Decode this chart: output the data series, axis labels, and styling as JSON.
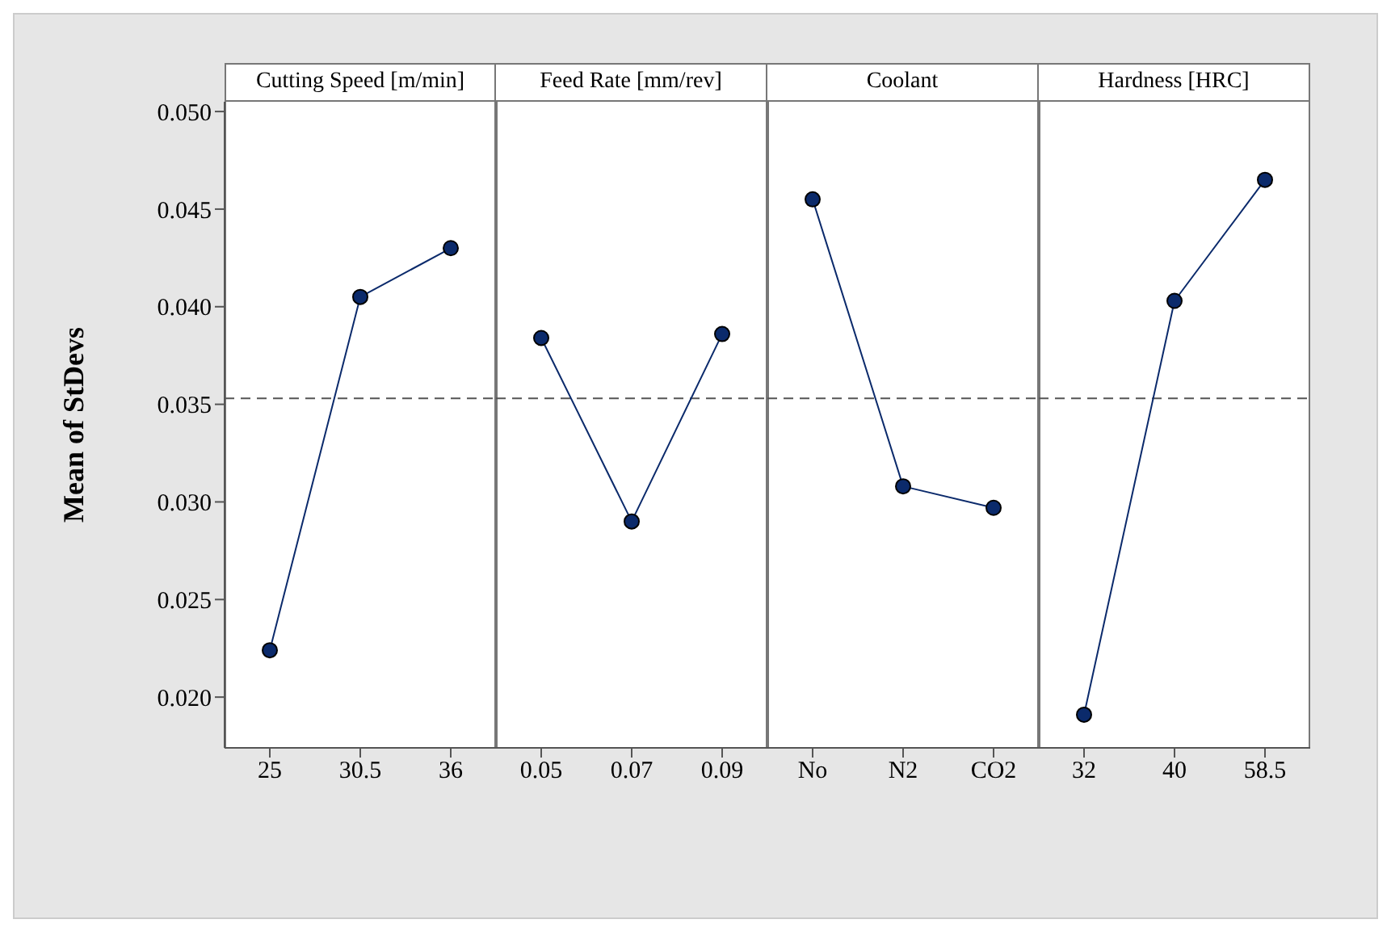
{
  "chart_data": [
    {
      "type": "line",
      "title": "Cutting Speed [m/min]",
      "ylabel": "Mean of StDevs",
      "categories": [
        "25",
        "30.5",
        "36"
      ],
      "series": [
        {
          "color": "#0b2a6b",
          "values": [
            0.0224,
            0.0405,
            0.043
          ]
        }
      ],
      "ylim": [
        0.0174,
        0.0505
      ],
      "yticks": [
        {
          "value": 0.02,
          "label": "0.020"
        },
        {
          "value": 0.025,
          "label": "0.025"
        },
        {
          "value": 0.03,
          "label": "0.030"
        },
        {
          "value": 0.035,
          "label": "0.035"
        },
        {
          "value": 0.04,
          "label": "0.040"
        },
        {
          "value": 0.045,
          "label": "0.045"
        },
        {
          "value": 0.05,
          "label": "0.050"
        }
      ],
      "ref_lines": [
        {
          "axis": "y",
          "value": 0.0353,
          "color": "#555555",
          "line_style": "dashed"
        }
      ],
      "marker": "circle",
      "line_style": "solid",
      "grid": false,
      "legend": false
    },
    {
      "type": "line",
      "title": "Feed Rate [mm/rev]",
      "categories": [
        "0.05",
        "0.07",
        "0.09"
      ],
      "series": [
        {
          "color": "#0b2a6b",
          "values": [
            0.0384,
            0.029,
            0.0386
          ]
        }
      ],
      "ylim": [
        0.0174,
        0.0505
      ],
      "tick_labels": "x",
      "ref_lines": [
        {
          "axis": "y",
          "value": 0.0353,
          "color": "#555555",
          "line_style": "dashed"
        }
      ],
      "marker": "circle",
      "line_style": "solid",
      "grid": false,
      "legend": false
    },
    {
      "type": "line",
      "title": "Coolant",
      "categories": [
        "No",
        "N2",
        "CO2"
      ],
      "series": [
        {
          "color": "#0b2a6b",
          "values": [
            0.0455,
            0.0308,
            0.0297
          ]
        }
      ],
      "ylim": [
        0.0174,
        0.0505
      ],
      "tick_labels": "x",
      "ref_lines": [
        {
          "axis": "y",
          "value": 0.0353,
          "color": "#555555",
          "line_style": "dashed"
        }
      ],
      "marker": "circle",
      "line_style": "solid",
      "grid": false,
      "legend": false
    },
    {
      "type": "line",
      "title": "Hardness [HRC]",
      "categories": [
        "32",
        "40",
        "58.5"
      ],
      "series": [
        {
          "color": "#0b2a6b",
          "values": [
            0.0191,
            0.0403,
            0.0465
          ]
        }
      ],
      "ylim": [
        0.0174,
        0.0505
      ],
      "tick_labels": "x",
      "ref_lines": [
        {
          "axis": "y",
          "value": 0.0353,
          "color": "#555555",
          "line_style": "dashed"
        }
      ],
      "marker": "circle",
      "line_style": "solid",
      "grid": false,
      "legend": false
    }
  ]
}
